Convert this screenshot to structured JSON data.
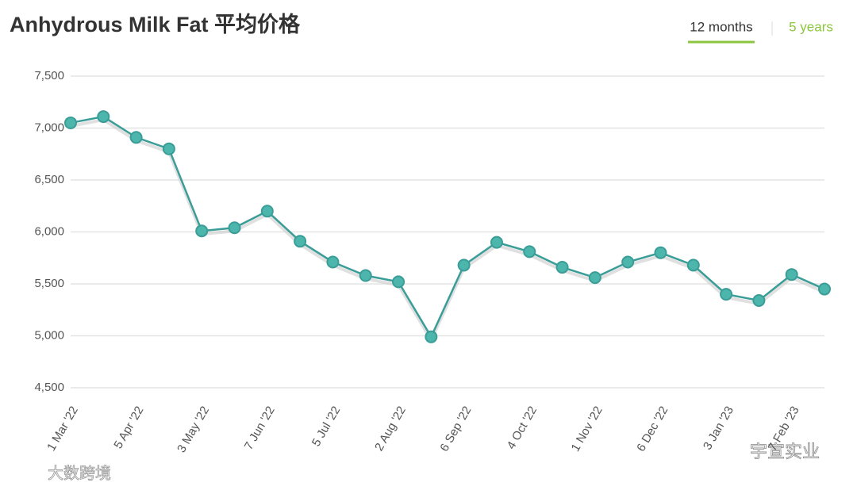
{
  "chart_data": {
    "type": "line",
    "title": "Anhydrous Milk Fat 平均价格",
    "categories": [
      "1 Mar '22",
      null,
      "5 Apr '22",
      null,
      "3 May '22",
      null,
      "7 Jun '22",
      null,
      "5 Jul '22",
      null,
      "2 Aug '22",
      null,
      "6 Sep '22",
      null,
      "4 Oct '22",
      null,
      "1 Nov '22",
      null,
      "6 Dec '22",
      null,
      "3 Jan '23",
      null,
      "7 Feb '23",
      null
    ],
    "series": [
      {
        "name": "Anhydrous Milk Fat",
        "color": "#3a9d97",
        "values": [
          7050,
          7110,
          6910,
          6800,
          6010,
          6040,
          6200,
          5910,
          5710,
          5580,
          5520,
          4990,
          5680,
          5900,
          5810,
          5660,
          5560,
          5710,
          5800,
          5680,
          5400,
          5340,
          5590,
          5450
        ]
      }
    ],
    "ylim": [
      4500,
      7500
    ],
    "yticks": [
      {
        "value": 4500,
        "label": "4,500"
      },
      {
        "value": 5000,
        "label": "5,000"
      },
      {
        "value": 5500,
        "label": "5,500"
      },
      {
        "value": 6000,
        "label": "6,000"
      },
      {
        "value": 6500,
        "label": "6,500"
      },
      {
        "value": 7000,
        "label": "7,000"
      },
      {
        "value": 7500,
        "label": "7,500"
      }
    ],
    "grid": true
  },
  "tabs": [
    "12 months",
    "5 years"
  ],
  "watermarks": [
    "大数跨境",
    "宇宣实业"
  ]
}
